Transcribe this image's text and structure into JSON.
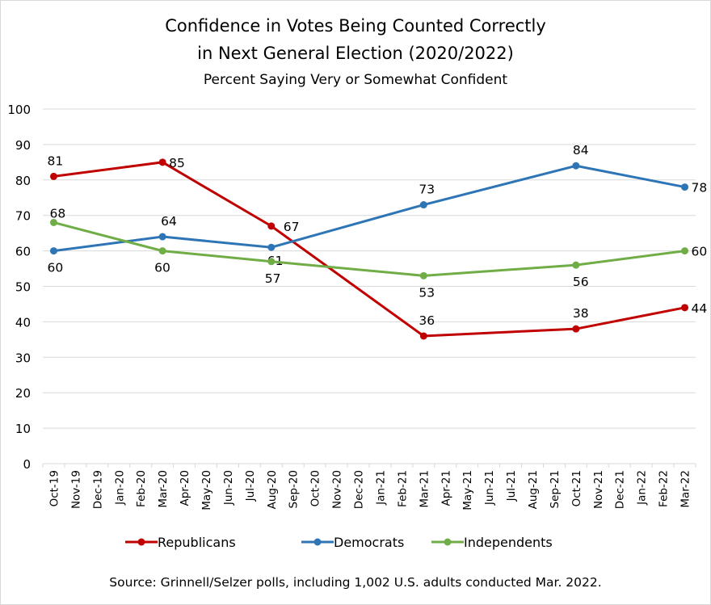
{
  "chart_data": {
    "type": "line",
    "title": "Confidence in Votes Being Counted Correctly",
    "title_line2": "in Next General Election (2020/2022)",
    "subtitle": "Percent Saying Very or Somewhat Confident",
    "source": "Source: Grinnell/Selzer polls, including 1,002 U.S. adults conducted Mar. 2022.",
    "ylim": [
      0,
      100
    ],
    "yticks": [
      "0",
      "10",
      "20",
      "30",
      "40",
      "50",
      "60",
      "70",
      "80",
      "90",
      "100"
    ],
    "categories": [
      "Oct-19",
      "Nov-19",
      "Dec-19",
      "Jan-20",
      "Feb-20",
      "Mar-20",
      "Apr-20",
      "May-20",
      "Jun-20",
      "Jul-20",
      "Aug-20",
      "Sep-20",
      "Oct-20",
      "Nov-20",
      "Dec-20",
      "Jan-21",
      "Feb-21",
      "Mar-21",
      "Apr-21",
      "May-21",
      "Jun-21",
      "Jul-21",
      "Aug-21",
      "Sep-21",
      "Oct-21",
      "Nov-21",
      "Dec-21",
      "Jan-22",
      "Feb-22",
      "Mar-22"
    ],
    "grid": true,
    "legend": "bottom",
    "series": [
      {
        "name": "Republicans",
        "color": "#c00000",
        "x": [
          "Oct-19",
          "Mar-20",
          "Aug-20",
          "Mar-21",
          "Oct-21",
          "Mar-22"
        ],
        "values": [
          81,
          85,
          67,
          36,
          38,
          44
        ]
      },
      {
        "name": "Democrats",
        "color": "#2e75b6",
        "x": [
          "Oct-19",
          "Mar-20",
          "Aug-20",
          "Mar-21",
          "Oct-21",
          "Mar-22"
        ],
        "values": [
          60,
          64,
          61,
          73,
          84,
          78
        ]
      },
      {
        "name": "Independents",
        "color": "#70ad47",
        "x": [
          "Oct-19",
          "Mar-20",
          "Aug-20",
          "Mar-21",
          "Oct-21",
          "Mar-22"
        ],
        "values": [
          68,
          60,
          57,
          53,
          56,
          60
        ]
      }
    ]
  }
}
